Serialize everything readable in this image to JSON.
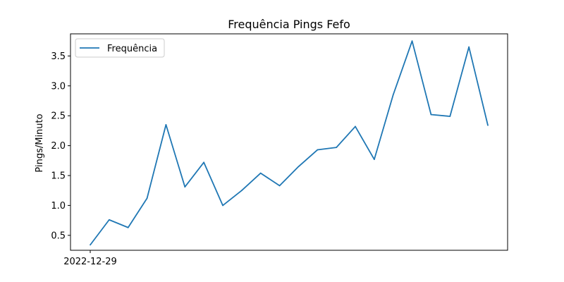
{
  "chart_data": {
    "type": "line",
    "title": "Frequência Pings Fefo",
    "xlabel": "",
    "ylabel": "Pings/Minuto",
    "x_tick_labels": [
      "2022-12-29"
    ],
    "y_ticks": [
      0.5,
      1.0,
      1.5,
      2.0,
      2.5,
      3.0,
      3.5
    ],
    "y_tick_labels": [
      "0.5",
      "1.0",
      "1.5",
      "2.0",
      "2.5",
      "3.0",
      "3.5"
    ],
    "ylim": [
      0.25,
      3.87
    ],
    "grid": false,
    "legend_position": "upper-left",
    "series": [
      {
        "name": "Frequência",
        "color": "#1f77b4",
        "values": [
          0.34,
          0.76,
          0.63,
          1.12,
          2.35,
          1.31,
          1.72,
          1.0,
          1.25,
          1.54,
          1.33,
          1.65,
          1.93,
          1.97,
          2.32,
          1.77,
          2.85,
          3.75,
          2.52,
          2.49,
          3.65,
          2.34
        ]
      }
    ]
  }
}
